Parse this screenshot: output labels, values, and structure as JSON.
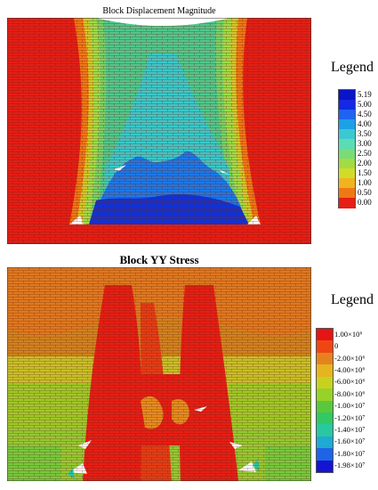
{
  "panel1": {
    "title": "Block Displacement Magnitude",
    "legend_title": "Legend",
    "legend": [
      {
        "label": "5.19",
        "color": "#0a14c8"
      },
      {
        "label": "5.00",
        "color": "#1428e6"
      },
      {
        "label": "4.50",
        "color": "#1e64f0"
      },
      {
        "label": "4.00",
        "color": "#1ea0e6"
      },
      {
        "label": "3.50",
        "color": "#3cc8d2"
      },
      {
        "label": "3.00",
        "color": "#5adcb4"
      },
      {
        "label": "2.50",
        "color": "#78dc78"
      },
      {
        "label": "2.00",
        "color": "#a0dc46"
      },
      {
        "label": "1.50",
        "color": "#d2dc28"
      },
      {
        "label": "1.00",
        "color": "#f0b41e"
      },
      {
        "label": "0.50",
        "color": "#f07814"
      },
      {
        "label": "0.00",
        "color": "#e61e14"
      }
    ]
  },
  "panel2": {
    "title": "Block YY Stress",
    "legend_title": "Legend",
    "legend": [
      {
        "label": "1.00×10⁶",
        "color": "#e61414"
      },
      {
        "label": "0",
        "color": "#f04614"
      },
      {
        "label": "-2.00×10⁶",
        "color": "#e6821e"
      },
      {
        "label": "-4.00×10⁶",
        "color": "#e6b41e"
      },
      {
        "label": "-6.00×10⁶",
        "color": "#c8d21e"
      },
      {
        "label": "-8.00×10⁶",
        "color": "#96d228"
      },
      {
        "label": "-1.00×10⁷",
        "color": "#5ac83c"
      },
      {
        "label": "-1.20×10⁷",
        "color": "#32c864"
      },
      {
        "label": "-1.40×10⁷",
        "color": "#28c8a0"
      },
      {
        "label": "-1.60×10⁷",
        "color": "#1eaad2"
      },
      {
        "label": "-1.80×10⁷",
        "color": "#1e64e6"
      },
      {
        "label": "-1.98×10⁷",
        "color": "#1414d2"
      }
    ]
  }
}
